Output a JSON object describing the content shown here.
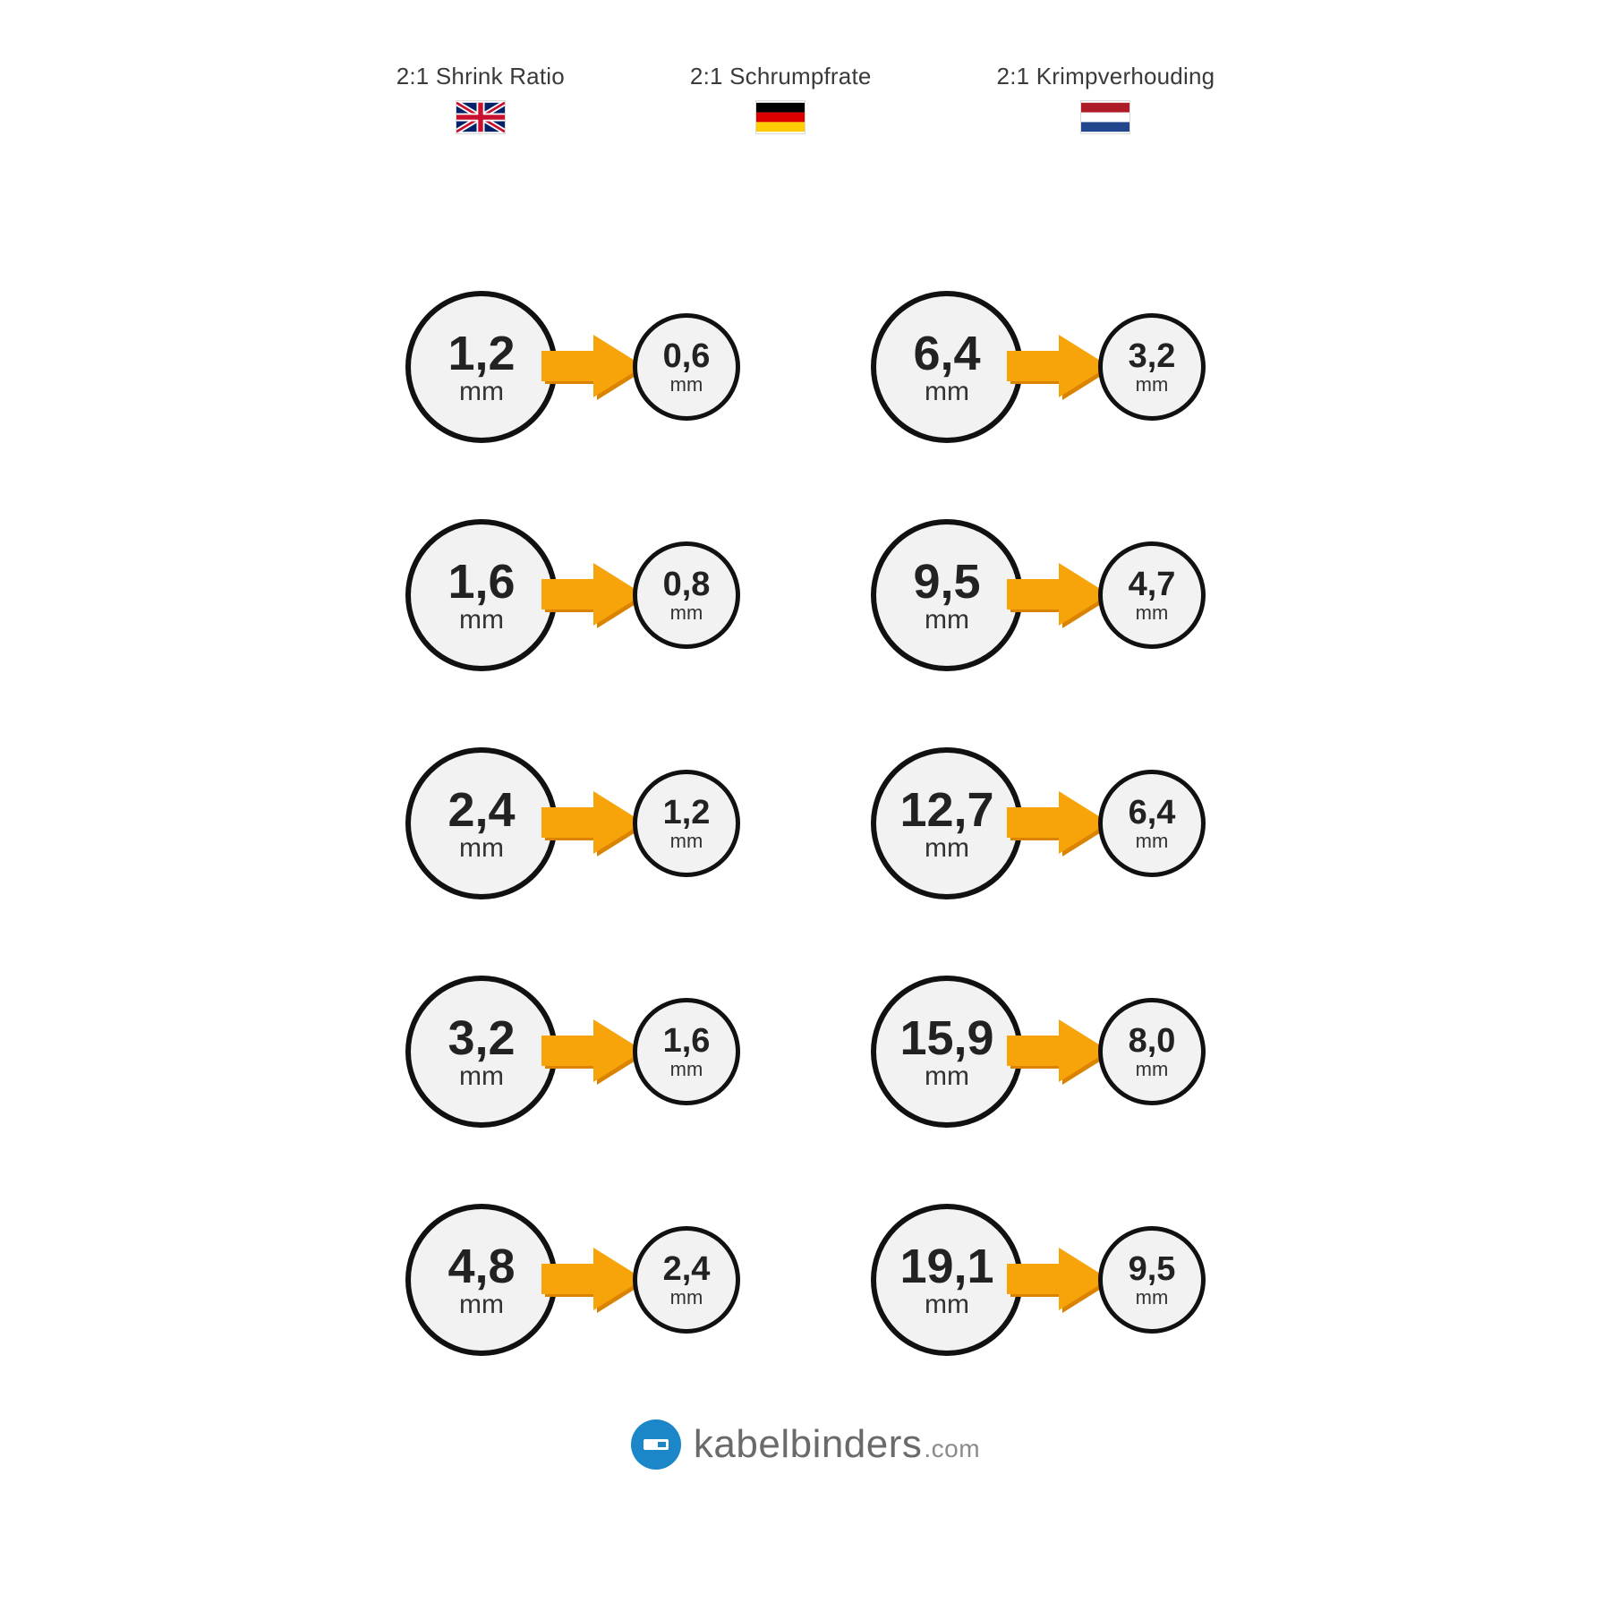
{
  "background_color": "#ffffff",
  "header": {
    "items": [
      {
        "label": "2:1 Shrink Ratio",
        "flag": "uk"
      },
      {
        "label": "2:1 Schrumpfrate",
        "flag": "de"
      },
      {
        "label": "2:1 Krimpverhouding",
        "flag": "nl"
      }
    ],
    "label_fontsize": 26,
    "label_color": "#3a3a3a",
    "flag_width": 54,
    "flag_height": 36
  },
  "style": {
    "circle_fill": "#f2f2f2",
    "circle_stroke": "#111111",
    "big_circle_diameter": 170,
    "big_circle_border": 6,
    "big_value_fontsize": 54,
    "big_unit_fontsize": 30,
    "small_circle_diameter": 120,
    "small_circle_border": 5,
    "small_value_fontsize": 38,
    "small_unit_fontsize": 22,
    "value_color": "#222222",
    "unit_color": "#333333",
    "arrow_color": "#f7a30a",
    "arrow_shadow": "#d98300",
    "row_gap": 75,
    "col_gap": 60
  },
  "unit_label": "mm",
  "pairs": [
    {
      "before": "1,2",
      "after": "0,6"
    },
    {
      "before": "6,4",
      "after": "3,2"
    },
    {
      "before": "1,6",
      "after": "0,8"
    },
    {
      "before": "9,5",
      "after": "4,7"
    },
    {
      "before": "2,4",
      "after": "1,2"
    },
    {
      "before": "12,7",
      "after": "6,4"
    },
    {
      "before": "3,2",
      "after": "1,6"
    },
    {
      "before": "15,9",
      "after": "8,0"
    },
    {
      "before": "4,8",
      "after": "2,4"
    },
    {
      "before": "19,1",
      "after": "9,5"
    }
  ],
  "footer": {
    "brand": "kabelbinders",
    "tld": ".com",
    "mark_color": "#1b87c9",
    "text_color": "#6a6a6a",
    "tld_color": "#8a8a8a",
    "brand_fontsize": 44,
    "tld_fontsize": 28
  }
}
